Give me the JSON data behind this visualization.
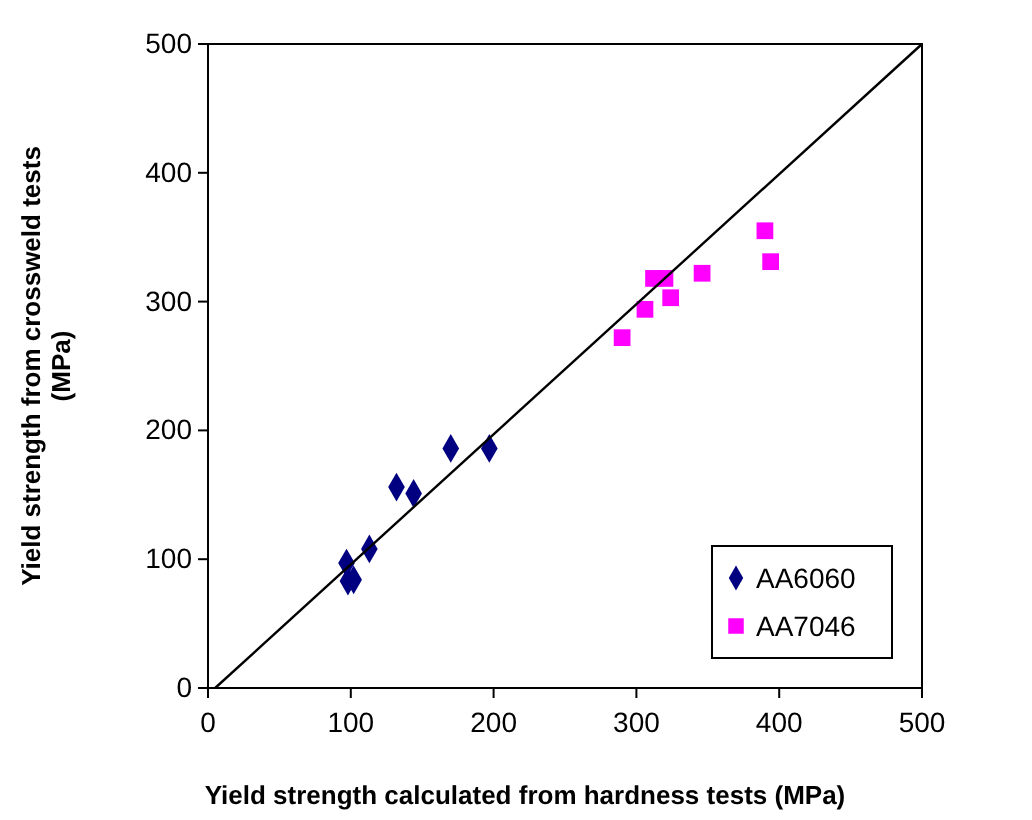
{
  "chart_data": {
    "type": "scatter",
    "xlabel": "Yield strength calculated from hardness tests (MPa)",
    "ylabel": "Yield strength from crossweld tests (MPa)",
    "xlim": [
      0,
      500
    ],
    "ylim": [
      0,
      500
    ],
    "xticks": [
      0,
      100,
      200,
      300,
      400,
      500
    ],
    "yticks": [
      0,
      100,
      200,
      300,
      400,
      500
    ],
    "grid": false,
    "legend": "bottom right",
    "series": [
      {
        "name": "AA6060",
        "color": "#000080",
        "marker": "diamond",
        "x": [
          97,
          98,
          102,
          113,
          132,
          144,
          170,
          197
        ],
        "values": [
          97,
          83,
          84,
          108,
          156,
          151,
          186,
          186
        ]
      },
      {
        "name": "AA7046",
        "color": "#ff00ff",
        "marker": "square",
        "x": [
          290,
          306,
          312,
          320,
          324,
          346,
          390,
          394
        ],
        "values": [
          272,
          294,
          318,
          318,
          303,
          322,
          355,
          331
        ]
      },
      {
        "type": "line",
        "color": "#000000",
        "marker": "none",
        "x": [
          5,
          500
        ],
        "values": [
          0,
          500
        ]
      }
    ]
  }
}
